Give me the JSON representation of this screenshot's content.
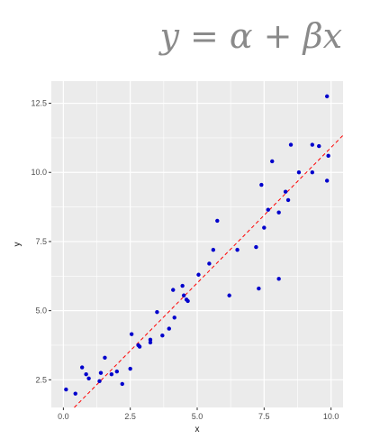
{
  "title": "y = α + βx",
  "chart_data": {
    "type": "scatter",
    "title": "y = α + βx",
    "xlabel": "x",
    "ylabel": "y",
    "xlim": [
      -0.45,
      10.45
    ],
    "ylim": [
      1.5,
      13.3
    ],
    "x_ticks": [
      "0.0",
      "2.5",
      "5.0",
      "7.5",
      "10.0"
    ],
    "y_ticks": [
      "2.5",
      "5.0",
      "7.5",
      "10.0",
      "12.5"
    ],
    "x_tick_values": [
      0,
      2.5,
      5,
      7.5,
      10
    ],
    "y_tick_values": [
      2.5,
      5,
      7.5,
      10,
      12.5
    ],
    "grid": true,
    "colors": {
      "points": "#0000cc",
      "fit_line": "#ff0000",
      "panel": "#ebebeb",
      "grid": "#ffffff"
    },
    "fit_line": {
      "alpha": 1.1,
      "beta": 0.98,
      "style": "dashed"
    },
    "points": [
      [
        0.1,
        2.15
      ],
      [
        0.45,
        2.0
      ],
      [
        0.7,
        2.95
      ],
      [
        0.85,
        2.7
      ],
      [
        0.95,
        2.55
      ],
      [
        1.35,
        2.45
      ],
      [
        1.4,
        2.75
      ],
      [
        1.55,
        3.3
      ],
      [
        1.8,
        2.7
      ],
      [
        2.0,
        2.8
      ],
      [
        2.2,
        2.35
      ],
      [
        2.5,
        2.9
      ],
      [
        2.55,
        4.15
      ],
      [
        2.8,
        3.75
      ],
      [
        2.85,
        3.7
      ],
      [
        3.25,
        3.85
      ],
      [
        3.25,
        3.95
      ],
      [
        3.5,
        4.95
      ],
      [
        3.7,
        4.1
      ],
      [
        3.95,
        4.35
      ],
      [
        4.1,
        5.75
      ],
      [
        4.15,
        4.75
      ],
      [
        4.45,
        5.9
      ],
      [
        4.5,
        5.55
      ],
      [
        4.6,
        5.4
      ],
      [
        4.65,
        5.35
      ],
      [
        5.05,
        6.3
      ],
      [
        5.45,
        6.7
      ],
      [
        5.6,
        7.2
      ],
      [
        5.75,
        8.25
      ],
      [
        6.2,
        5.55
      ],
      [
        6.5,
        7.2
      ],
      [
        7.2,
        7.3
      ],
      [
        7.3,
        5.8
      ],
      [
        7.4,
        9.55
      ],
      [
        7.5,
        8.0
      ],
      [
        7.65,
        8.65
      ],
      [
        7.8,
        10.4
      ],
      [
        8.05,
        6.15
      ],
      [
        8.05,
        8.55
      ],
      [
        8.3,
        9.3
      ],
      [
        8.4,
        9.0
      ],
      [
        8.5,
        11.0
      ],
      [
        8.8,
        10.0
      ],
      [
        9.3,
        10.0
      ],
      [
        9.3,
        11.0
      ],
      [
        9.55,
        10.95
      ],
      [
        9.85,
        9.7
      ],
      [
        9.85,
        12.75
      ],
      [
        9.9,
        10.6
      ]
    ]
  }
}
